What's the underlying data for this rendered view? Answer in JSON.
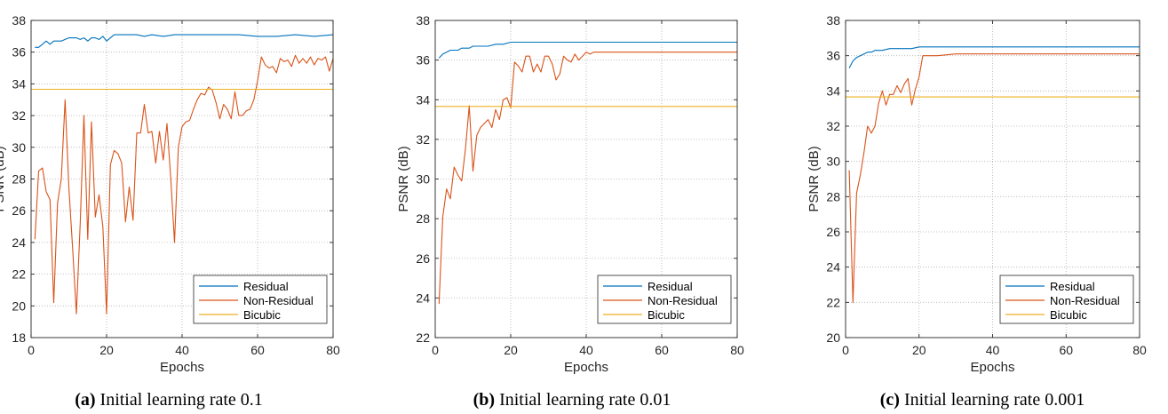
{
  "chart_data": [
    {
      "type": "line",
      "caption_letter": "(a)",
      "caption_text": " Initial learning rate 0.1",
      "xlabel": "Epochs",
      "ylabel": "PSNR (dB)",
      "xlim": [
        0,
        80
      ],
      "ylim": [
        18,
        38
      ],
      "xticks": [
        0,
        20,
        40,
        60,
        80
      ],
      "yticks": [
        18,
        20,
        22,
        24,
        26,
        28,
        30,
        32,
        34,
        36,
        38
      ],
      "grid": true,
      "legend_position": "bottom-right",
      "series": [
        {
          "name": "Residual",
          "color": "#0072BD",
          "x": [
            1,
            2,
            3,
            4,
            5,
            6,
            7,
            8,
            9,
            10,
            11,
            12,
            13,
            14,
            15,
            16,
            17,
            18,
            19,
            20,
            22,
            24,
            26,
            28,
            30,
            32,
            35,
            38,
            40,
            45,
            50,
            55,
            60,
            65,
            70,
            75,
            80
          ],
          "y": [
            36.3,
            36.3,
            36.5,
            36.7,
            36.5,
            36.7,
            36.7,
            36.7,
            36.8,
            36.9,
            36.9,
            36.9,
            36.8,
            36.9,
            36.7,
            36.9,
            36.9,
            36.8,
            37.0,
            36.7,
            37.1,
            37.1,
            37.1,
            37.1,
            37.0,
            37.1,
            37.0,
            37.1,
            37.1,
            37.1,
            37.1,
            37.1,
            37.0,
            37.0,
            37.1,
            37.0,
            37.1
          ]
        },
        {
          "name": "Non-Residual",
          "color": "#D95319",
          "x": [
            1,
            2,
            3,
            4,
            5,
            6,
            7,
            8,
            9,
            10,
            11,
            12,
            13,
            14,
            15,
            16,
            17,
            18,
            19,
            20,
            21,
            22,
            23,
            24,
            25,
            26,
            27,
            28,
            29,
            30,
            31,
            32,
            33,
            34,
            35,
            36,
            37,
            38,
            39,
            40,
            41,
            42,
            43,
            44,
            45,
            46,
            47,
            48,
            49,
            50,
            51,
            52,
            53,
            54,
            55,
            56,
            57,
            58,
            59,
            60,
            61,
            62,
            63,
            64,
            65,
            66,
            67,
            68,
            69,
            70,
            71,
            72,
            73,
            74,
            75,
            76,
            77,
            78,
            79,
            80
          ],
          "y": [
            24.2,
            28.5,
            28.7,
            27.2,
            26.7,
            20.2,
            26.5,
            28.0,
            33.0,
            27.5,
            23.6,
            19.5,
            25.2,
            32.0,
            24.2,
            31.6,
            25.6,
            27.0,
            25.0,
            19.5,
            28.9,
            29.8,
            29.6,
            29.0,
            25.3,
            27.5,
            25.4,
            30.9,
            30.9,
            32.7,
            30.9,
            31.0,
            29.0,
            31.0,
            29.2,
            31.5,
            28.0,
            24.0,
            30.0,
            31.3,
            31.6,
            31.7,
            32.4,
            33.0,
            33.4,
            33.3,
            33.8,
            33.6,
            32.8,
            31.8,
            32.7,
            32.4,
            31.8,
            33.5,
            32.0,
            32.0,
            32.3,
            32.4,
            33.0,
            34.2,
            35.7,
            35.2,
            35.0,
            35.1,
            34.7,
            35.6,
            35.4,
            35.5,
            35.1,
            35.8,
            35.3,
            35.6,
            35.3,
            35.7,
            35.2,
            35.6,
            35.5,
            35.7,
            34.8,
            35.6
          ]
        },
        {
          "name": "Bicubic",
          "color": "#EDB120",
          "x": [
            0,
            80
          ],
          "y": [
            33.66,
            33.66
          ]
        }
      ]
    },
    {
      "type": "line",
      "caption_letter": "(b)",
      "caption_text": " Initial learning rate 0.01",
      "xlabel": "Epochs",
      "ylabel": "PSNR (dB)",
      "xlim": [
        0,
        80
      ],
      "ylim": [
        22,
        38
      ],
      "xticks": [
        0,
        20,
        40,
        60,
        80
      ],
      "yticks": [
        22,
        24,
        26,
        28,
        30,
        32,
        34,
        36,
        38
      ],
      "grid": true,
      "legend_position": "bottom-right",
      "series": [
        {
          "name": "Residual",
          "color": "#0072BD",
          "x": [
            1,
            2,
            3,
            4,
            5,
            6,
            7,
            8,
            9,
            10,
            12,
            14,
            16,
            18,
            20,
            22,
            25,
            30,
            35,
            40,
            50,
            60,
            70,
            80
          ],
          "y": [
            36.1,
            36.3,
            36.4,
            36.5,
            36.5,
            36.5,
            36.6,
            36.6,
            36.6,
            36.7,
            36.7,
            36.7,
            36.8,
            36.8,
            36.9,
            36.9,
            36.9,
            36.9,
            36.9,
            36.9,
            36.9,
            36.9,
            36.9,
            36.9
          ]
        },
        {
          "name": "Non-Residual",
          "color": "#D95319",
          "x": [
            1,
            2,
            3,
            4,
            5,
            6,
            7,
            8,
            9,
            10,
            11,
            12,
            13,
            14,
            15,
            16,
            17,
            18,
            19,
            20,
            21,
            22,
            23,
            24,
            25,
            26,
            27,
            28,
            29,
            30,
            31,
            32,
            33,
            34,
            35,
            36,
            37,
            38,
            39,
            40,
            41,
            42,
            43,
            44,
            45,
            50,
            55,
            60,
            65,
            70,
            75,
            80
          ],
          "y": [
            23.7,
            28.1,
            29.5,
            29.0,
            30.6,
            30.2,
            29.9,
            31.5,
            33.7,
            30.4,
            32.2,
            32.6,
            32.8,
            33.0,
            32.6,
            33.5,
            33.0,
            34.0,
            34.1,
            33.6,
            35.9,
            35.7,
            35.4,
            36.2,
            36.2,
            35.4,
            35.8,
            35.4,
            36.2,
            36.2,
            35.8,
            35.0,
            35.3,
            36.2,
            36.0,
            35.9,
            36.3,
            36.0,
            36.2,
            36.4,
            36.3,
            36.4,
            36.4,
            36.4,
            36.4,
            36.4,
            36.4,
            36.4,
            36.4,
            36.4,
            36.4,
            36.4
          ]
        },
        {
          "name": "Bicubic",
          "color": "#EDB120",
          "x": [
            0,
            80
          ],
          "y": [
            33.66,
            33.66
          ]
        }
      ]
    },
    {
      "type": "line",
      "caption_letter": "(c)",
      "caption_text": " Initial learning rate 0.001",
      "xlabel": "Epochs",
      "ylabel": "PSNR (dB)",
      "xlim": [
        0,
        80
      ],
      "ylim": [
        20,
        38
      ],
      "xticks": [
        0,
        20,
        40,
        60,
        80
      ],
      "yticks": [
        20,
        22,
        24,
        26,
        28,
        30,
        32,
        34,
        36,
        38
      ],
      "grid": true,
      "legend_position": "bottom-right",
      "series": [
        {
          "name": "Residual",
          "color": "#0072BD",
          "x": [
            1,
            2,
            3,
            4,
            5,
            6,
            7,
            8,
            9,
            10,
            12,
            14,
            16,
            18,
            20,
            22,
            25,
            30,
            40,
            50,
            60,
            70,
            80
          ],
          "y": [
            35.3,
            35.7,
            35.9,
            36.0,
            36.1,
            36.2,
            36.2,
            36.3,
            36.3,
            36.3,
            36.4,
            36.4,
            36.4,
            36.4,
            36.5,
            36.5,
            36.5,
            36.5,
            36.5,
            36.5,
            36.5,
            36.5,
            36.5
          ]
        },
        {
          "name": "Non-Residual",
          "color": "#D95319",
          "x": [
            1,
            2,
            3,
            4,
            5,
            6,
            7,
            8,
            9,
            10,
            11,
            12,
            13,
            14,
            15,
            16,
            17,
            18,
            19,
            20,
            21,
            22,
            25,
            30,
            40,
            50,
            60,
            70,
            80
          ],
          "y": [
            29.5,
            22.0,
            28.2,
            29.2,
            30.5,
            32.0,
            31.6,
            32.0,
            33.3,
            34.0,
            33.2,
            33.8,
            33.8,
            34.3,
            33.9,
            34.4,
            34.7,
            33.2,
            34.1,
            34.8,
            36.0,
            36.0,
            36.0,
            36.1,
            36.1,
            36.1,
            36.1,
            36.1,
            36.1
          ]
        },
        {
          "name": "Bicubic",
          "color": "#EDB120",
          "x": [
            0,
            80
          ],
          "y": [
            33.66,
            33.66
          ]
        }
      ]
    }
  ]
}
